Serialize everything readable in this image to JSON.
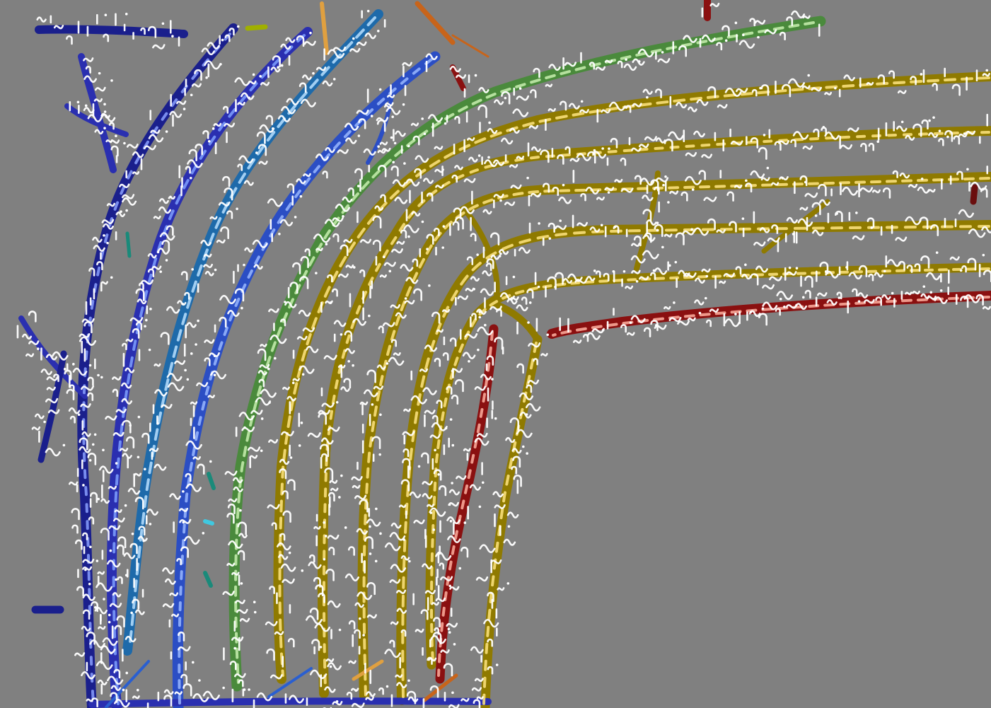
{
  "canvas": {
    "background": "#808080",
    "ink_color": "#ffffff"
  },
  "palette": {
    "navy": "#1a1f8c",
    "indigo": "#2a2fb0",
    "sky": "#5ea8ea",
    "royal": "#2b4ec4",
    "green": "#4a8a3c",
    "olive": "#8f7a00",
    "crimson": "#8a1010",
    "amber": "#e0a040",
    "orange": "#c8641a",
    "teal": "#1a8a7a",
    "lime": "#a0b000"
  },
  "bands": [
    {
      "name": "navy-band",
      "color_key": "navy",
      "highlight": "#8aa0ff"
    },
    {
      "name": "indigo-band",
      "color_key": "indigo",
      "highlight": "#7fa0ff"
    },
    {
      "name": "sky-band",
      "color_key": "sky",
      "highlight": "#b8e0ff"
    },
    {
      "name": "royal-band",
      "color_key": "royal",
      "highlight": "#9ab8ff"
    },
    {
      "name": "green-band",
      "color_key": "green",
      "highlight": "#c8f0b0"
    },
    {
      "name": "olive-band",
      "color_key": "olive",
      "highlight": "#ffe680"
    },
    {
      "name": "crimson-band",
      "color_key": "crimson",
      "highlight": "#ffb0a0"
    }
  ]
}
